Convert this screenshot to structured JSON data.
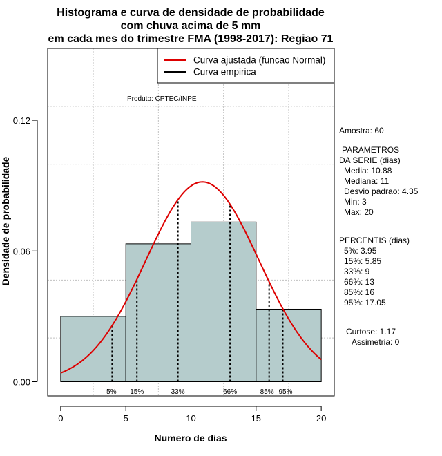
{
  "chart_data": {
    "type": "bar",
    "title_lines": [
      "Histograma e curva de densidade de probabilidade",
      "com chuva acima de 5 mm",
      "em cada mes do trimestre FMA (1998-2017): Regiao 71"
    ],
    "xlabel": "Numero de dias",
    "ylabel": "Densidade de probabilidade",
    "xlim": [
      -1,
      21
    ],
    "ylim": [
      -0.0065,
      0.153
    ],
    "x_ticks": [
      0,
      5,
      10,
      15,
      20
    ],
    "y_ticks": [
      0.0,
      0.06,
      0.12
    ],
    "y_tick_labels": [
      "0.00",
      "0.06",
      "0.12"
    ],
    "grid": true,
    "bins": [
      {
        "start": 0,
        "end": 5,
        "density": 0.03
      },
      {
        "start": 5,
        "end": 10,
        "density": 0.0633
      },
      {
        "start": 10,
        "end": 15,
        "density": 0.0733
      },
      {
        "start": 15,
        "end": 20,
        "density": 0.0333
      }
    ],
    "bar_color": "#b5cccc",
    "normal_fit": {
      "mean": 10.88,
      "sd": 4.35,
      "x_from": 0,
      "x_to": 20,
      "color": "#dd0000"
    },
    "percentile_lines": [
      {
        "label": "5%",
        "x": 3.95
      },
      {
        "label": "15%",
        "x": 5.85
      },
      {
        "label": "33%",
        "x": 9
      },
      {
        "label": "66%",
        "x": 13
      },
      {
        "label": "85%",
        "x": 16
      },
      {
        "label": "95%",
        "x": 17.05
      }
    ],
    "legend": {
      "placement": "top-right",
      "entries": [
        {
          "label": "Curva ajustada (funcao Normal)",
          "color": "#dd0000"
        },
        {
          "label": "Curva empirica",
          "color": "#000000"
        }
      ]
    },
    "annotations": {
      "produto": "Produto: CPTEC/INPE"
    }
  },
  "side_panel": {
    "amostra": "Amostra: 60",
    "params_title_1": "PARAMETROS",
    "params_title_2": "DA SERIE (dias)",
    "params": [
      "Media: 10.88",
      "Mediana: 11",
      "Desvio padrao: 4.35",
      "Min: 3",
      "Max: 20"
    ],
    "pct_title": "PERCENTIS (dias)",
    "percentis": [
      "5%: 3.95",
      "15%: 5.85",
      "33%: 9",
      "66%: 13",
      "85%: 16",
      "95%: 17.05"
    ],
    "curtose": "Curtose: 1.17",
    "assimetria": "Assimetria: 0"
  }
}
